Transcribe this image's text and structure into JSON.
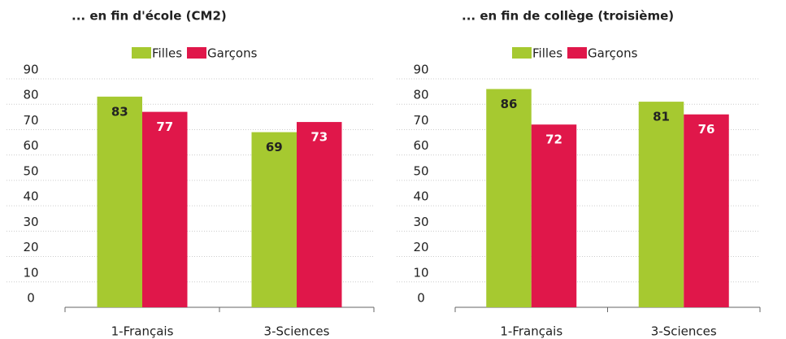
{
  "chart_data": [
    {
      "type": "bar",
      "title": "... en fin d'école (CM2)",
      "categories": [
        "1-Français",
        "3-Sciences"
      ],
      "series": [
        {
          "name": "Filles",
          "color": "#a6c930",
          "values": [
            83,
            69
          ]
        },
        {
          "name": "Garçons",
          "color": "#e0174a",
          "values": [
            77,
            73
          ]
        }
      ],
      "ylim": [
        0,
        90
      ],
      "yticks": [
        0,
        10,
        20,
        30,
        40,
        50,
        60,
        70,
        80,
        90
      ],
      "grid": true
    },
    {
      "type": "bar",
      "title": "... en fin de collège (troisième)",
      "categories": [
        "1-Français",
        "3-Sciences"
      ],
      "series": [
        {
          "name": "Filles",
          "color": "#a6c930",
          "values": [
            86,
            81
          ]
        },
        {
          "name": "Garçons",
          "color": "#e0174a",
          "values": [
            72,
            76
          ]
        }
      ],
      "ylim": [
        0,
        90
      ],
      "yticks": [
        0,
        10,
        20,
        30,
        40,
        50,
        60,
        70,
        80,
        90
      ],
      "grid": true
    }
  ]
}
